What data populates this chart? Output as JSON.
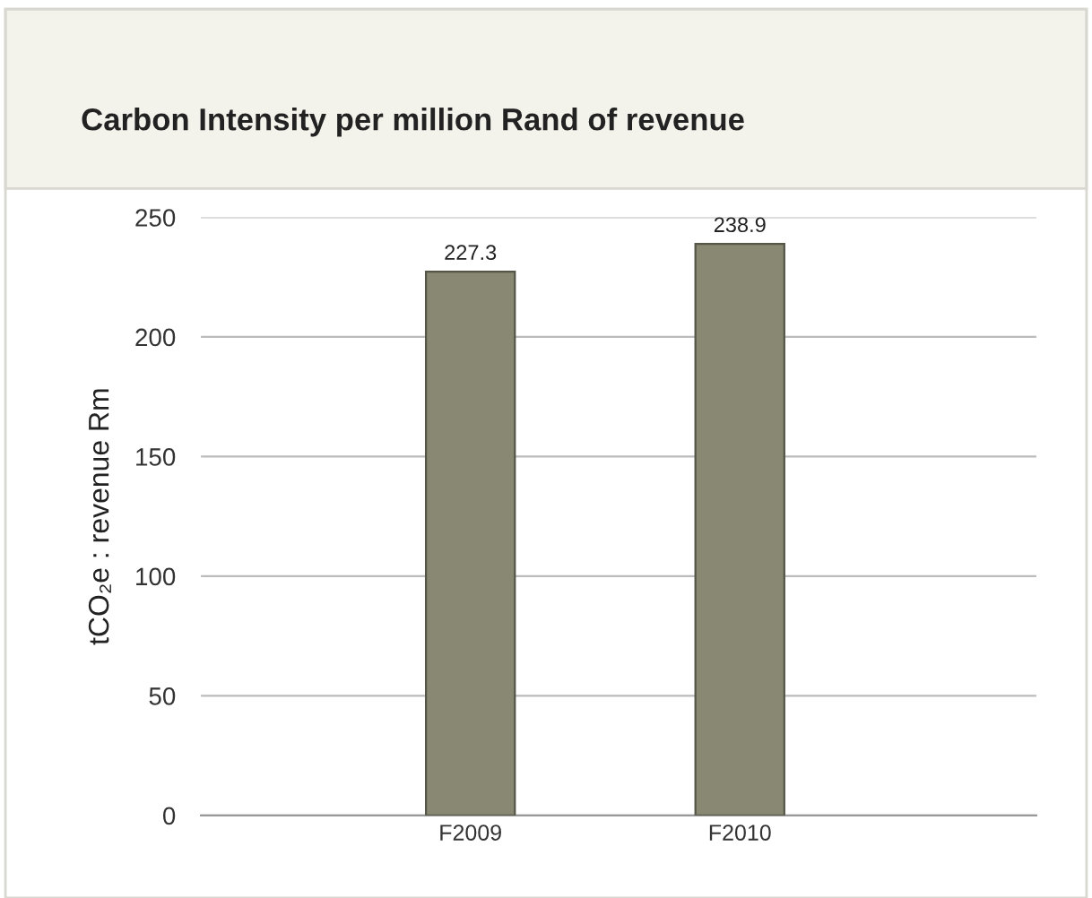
{
  "chart_data": {
    "type": "bar",
    "title": "Carbon Intensity per million Rand of revenue",
    "ylabel": "tCO₂e : revenue Rm",
    "categories": [
      "F2009",
      "F2010"
    ],
    "values": [
      227.3,
      238.9
    ],
    "color": "#888873",
    "ylim": [
      0,
      250
    ],
    "yticks": [
      0,
      50,
      100,
      150,
      200,
      250
    ],
    "grid": "y",
    "data_labels": true
  }
}
